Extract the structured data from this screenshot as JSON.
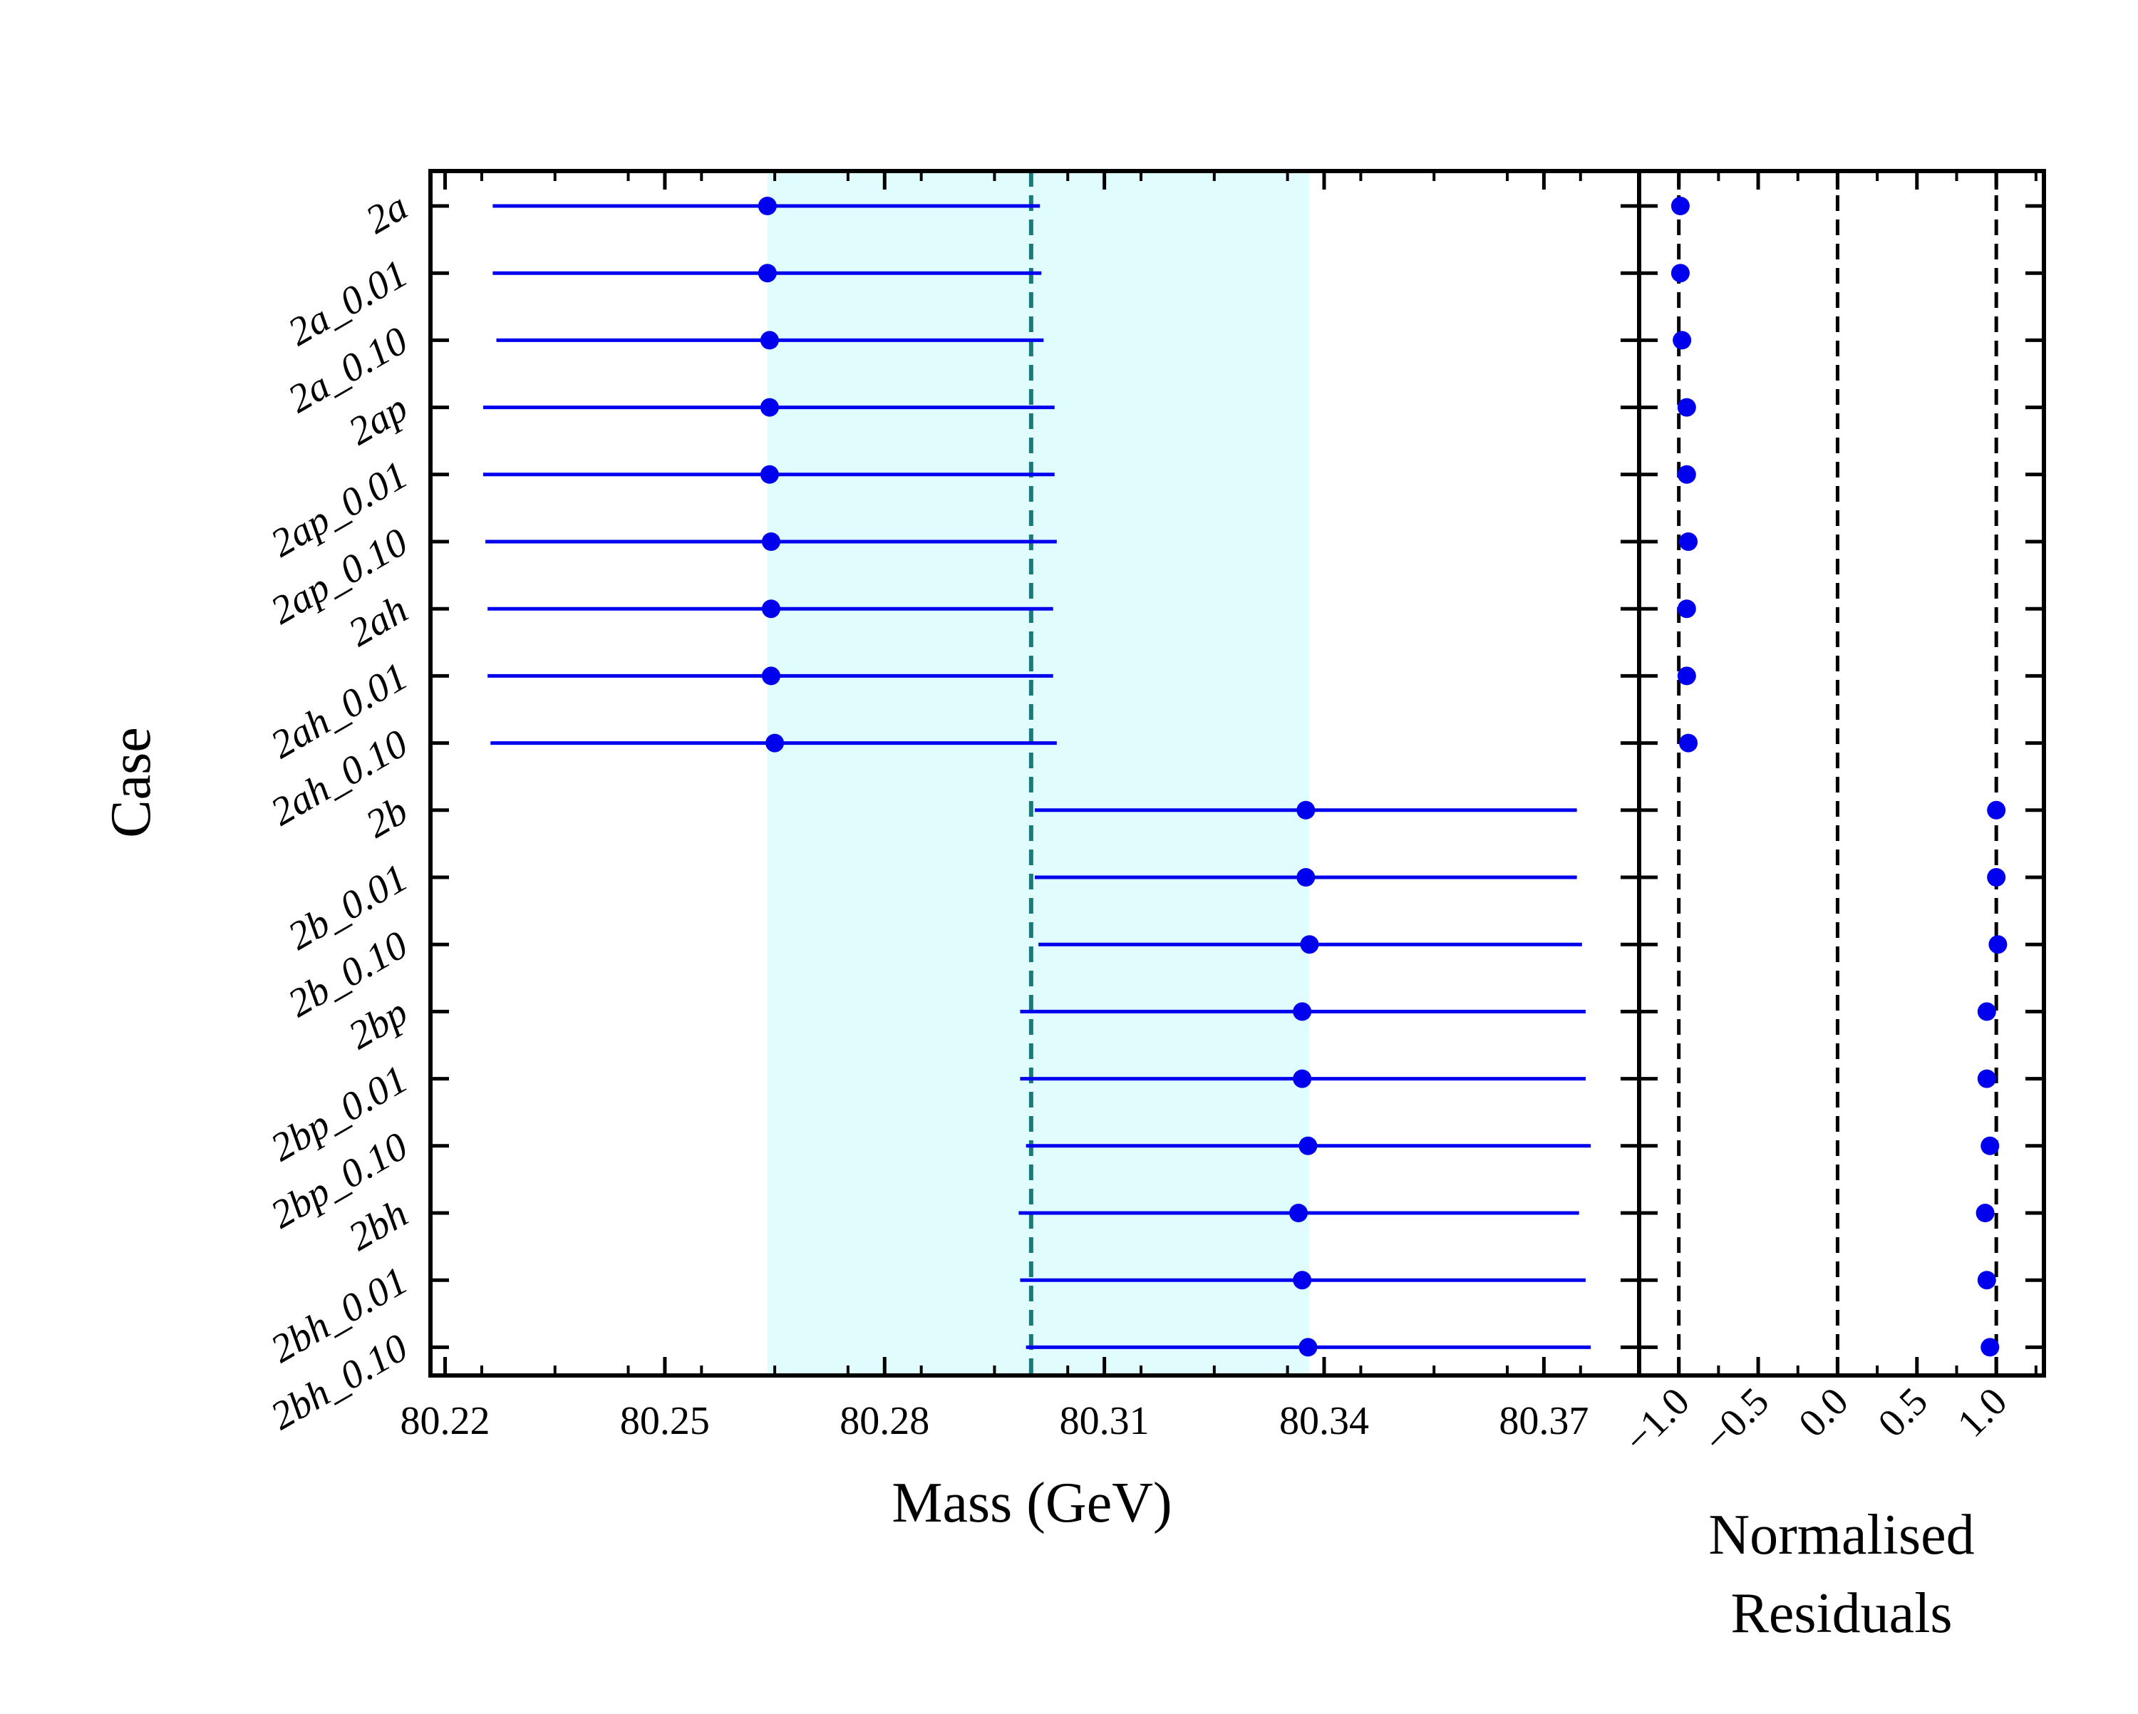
{
  "chart_data": [
    {
      "type": "errorbar",
      "panel": "mass",
      "xlabel": "Mass (GeV)",
      "ylabel": "Case",
      "xlim": [
        80.218,
        80.383
      ],
      "xticks": [
        80.22,
        80.25,
        80.28,
        80.31,
        80.34,
        80.37
      ],
      "xtick_labels": [
        "80.22",
        "80.25",
        "80.28",
        "80.31",
        "80.34",
        "80.37"
      ],
      "reference_line": 80.3,
      "band": [
        80.264,
        80.338
      ],
      "categories": [
        "2a",
        "2a_0.01",
        "2a_0.10",
        "2ap",
        "2ap_0.01",
        "2ap_0.10",
        "2ah",
        "2ah_0.01",
        "2ah_0.10",
        "2b",
        "2b_0.01",
        "2b_0.10",
        "2bp",
        "2bp_0.01",
        "2bp_0.10",
        "2bh",
        "2bh_0.01",
        "2bh_0.10"
      ],
      "series": [
        {
          "name": "Mass",
          "values": [
            80.264,
            80.264,
            80.2643,
            80.2643,
            80.2643,
            80.2645,
            80.2645,
            80.2645,
            80.265,
            80.3375,
            80.3375,
            80.338,
            80.337,
            80.337,
            80.3378,
            80.3365,
            80.337,
            80.3378
          ],
          "lower": [
            80.2265,
            80.2265,
            80.227,
            80.2252,
            80.2252,
            80.2255,
            80.2258,
            80.2258,
            80.2262,
            80.3005,
            80.3005,
            80.301,
            80.2985,
            80.2985,
            80.2993,
            80.2983,
            80.2985,
            80.2993
          ],
          "upper": [
            80.3012,
            80.3014,
            80.3017,
            80.3032,
            80.3032,
            80.3035,
            80.303,
            80.303,
            80.3035,
            80.3745,
            80.3745,
            80.3752,
            80.3757,
            80.3757,
            80.3764,
            80.3748,
            80.3757,
            80.3764
          ]
        }
      ],
      "color": "#0000ee",
      "reference_color": "#1a7a7a",
      "band_color": "#e0fcfc"
    },
    {
      "type": "scatter",
      "panel": "residuals",
      "xlabel": "Normalised Residuals",
      "xlabel_lines": [
        "Normalised",
        "Residuals"
      ],
      "xlim": [
        -1.25,
        1.3
      ],
      "xticks": [
        -1.0,
        -0.5,
        0.0,
        0.5,
        1.0
      ],
      "xtick_labels": [
        "−1.0",
        "−0.5",
        "0.0",
        "0.5",
        "1.0"
      ],
      "reference_lines": [
        -1.0,
        0.0,
        1.0
      ],
      "values": [
        -0.99,
        -0.99,
        -0.98,
        -0.95,
        -0.95,
        -0.94,
        -0.95,
        -0.95,
        -0.94,
        1.0,
        1.0,
        1.01,
        0.94,
        0.94,
        0.96,
        0.93,
        0.94,
        0.96
      ],
      "color": "#0000ee"
    }
  ]
}
